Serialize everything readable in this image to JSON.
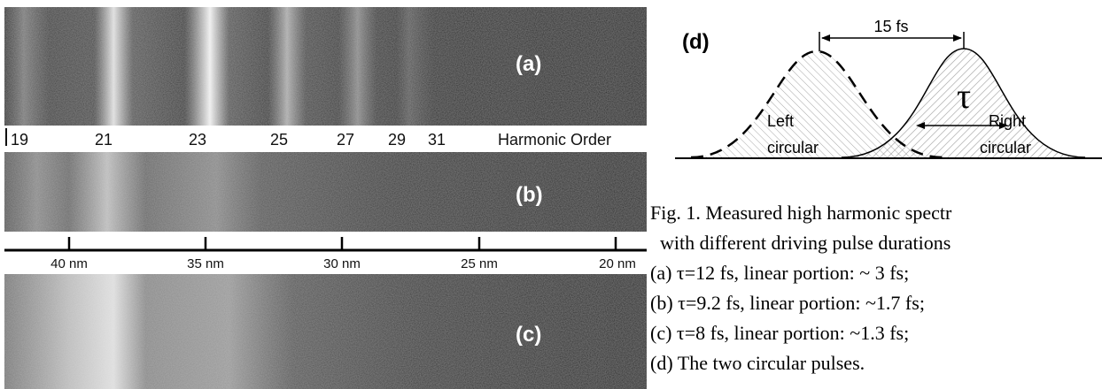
{
  "panels": [
    {
      "label": "(a)"
    },
    {
      "label": "(b)"
    },
    {
      "label": "(c)"
    }
  ],
  "harmonic_axis": {
    "orders": [
      "19",
      "21",
      "23",
      "25",
      "27",
      "29",
      "31"
    ],
    "title": "Harmonic Order"
  },
  "wavelength_axis": {
    "labels": [
      "40 nm",
      "35 nm",
      "30 nm",
      "25 nm",
      "20 nm"
    ]
  },
  "diagram": {
    "label": "(d)",
    "delay": "15 fs",
    "width": "τ",
    "left_pulse": [
      "Left",
      "circular"
    ],
    "right_pulse": [
      "Right",
      "circular"
    ]
  },
  "caption": [
    "Fig. 1. Measured high harmonic spectr",
    "with different driving pulse durations",
    "(a) τ=12 fs, linear portion: ~ 3 fs;",
    "(b) τ=9.2 fs, linear portion: ~1.7 fs;",
    "(c) τ=8 fs, linear portion: ~1.3 fs;",
    "(d) The two circular pulses."
  ]
}
